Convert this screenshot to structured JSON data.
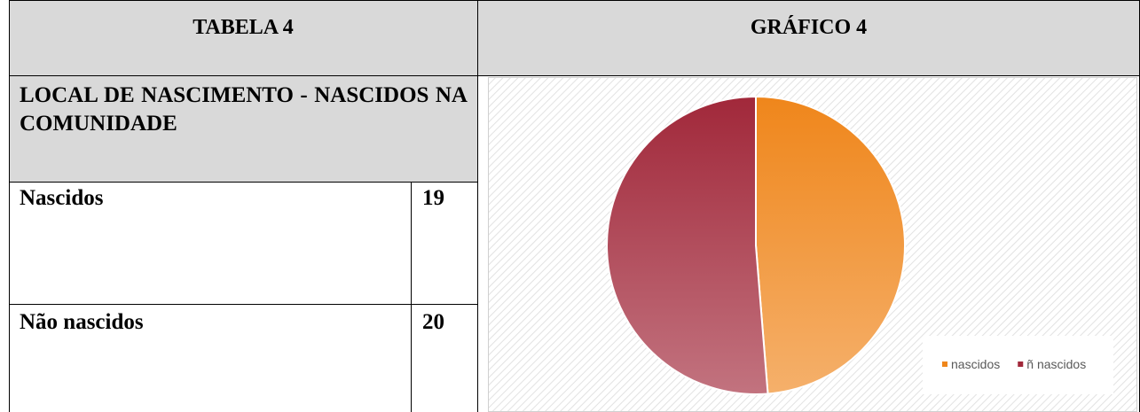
{
  "header": {
    "left": "TABELA 4",
    "right": "GRÁFICO 4"
  },
  "table": {
    "title": "LOCAL DE NASCIMENTO - NASCIDOS NA COMUNIDADE",
    "rows": [
      [
        "Nascidos",
        19
      ],
      [
        "Não nascidos",
        20
      ]
    ]
  },
  "chart_data": {
    "type": "pie",
    "categories": [
      "nascidos",
      "ñ nascidos"
    ],
    "values": [
      19,
      20
    ],
    "colors": [
      "#ef861b",
      "#a1283a"
    ],
    "legend": "bottom-right"
  }
}
